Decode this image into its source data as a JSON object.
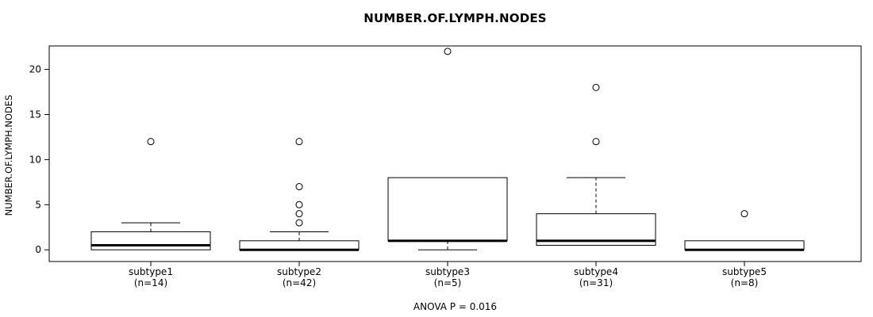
{
  "chart_data": {
    "type": "boxplot",
    "title": "NUMBER.OF.LYMPH.NODES",
    "ylabel": "NUMBER.OF.LYMPH.NODES",
    "caption": "ANOVA P = 0.016",
    "ylim": [
      -1.3,
      22.6
    ],
    "yticks": [
      0,
      5,
      10,
      15,
      20
    ],
    "grid": false,
    "categories": [
      "subtype1",
      "subtype2",
      "subtype3",
      "subtype4",
      "subtype5"
    ],
    "n_labels": [
      "(n=14)",
      "(n=42)",
      "(n=5)",
      "(n=31)",
      "(n=8)"
    ],
    "series": [
      {
        "name": "subtype1",
        "n": 14,
        "whisker_low": 0,
        "q1": 0,
        "median": 0.5,
        "q3": 2,
        "whisker_high": 3,
        "outliers": [
          12
        ]
      },
      {
        "name": "subtype2",
        "n": 42,
        "whisker_low": 0,
        "q1": 0,
        "median": 0,
        "q3": 1,
        "whisker_high": 2,
        "outliers": [
          3,
          4,
          5,
          7,
          12
        ]
      },
      {
        "name": "subtype3",
        "n": 5,
        "whisker_low": 0,
        "q1": 1,
        "median": 1,
        "q3": 8,
        "whisker_high": 8,
        "outliers": [
          22
        ]
      },
      {
        "name": "subtype4",
        "n": 31,
        "whisker_low": 0.5,
        "q1": 0.5,
        "median": 1,
        "q3": 4,
        "whisker_high": 8,
        "outliers": [
          12,
          18
        ]
      },
      {
        "name": "subtype5",
        "n": 8,
        "whisker_low": 0,
        "q1": 0,
        "median": 0,
        "q3": 1,
        "whisker_high": 1,
        "outliers": [
          4
        ]
      }
    ]
  }
}
